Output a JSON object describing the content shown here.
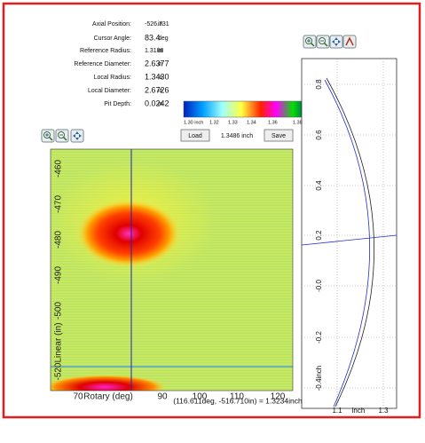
{
  "info": [
    {
      "label": "Axial Position:",
      "value": "-526.731",
      "unit": "in"
    },
    {
      "label": "Cursor Angle:",
      "value": "83.4",
      "unit": "deg"
    },
    {
      "label": "Reference Radius:",
      "value": "1.3188",
      "unit": "in"
    },
    {
      "label": "Reference Diameter:",
      "value": "2.6377",
      "unit": "in"
    },
    {
      "label": "Local Radius:",
      "value": "1.3430",
      "unit": "in"
    },
    {
      "label": "Local Diameter:",
      "value": "2.6726",
      "unit": "in"
    },
    {
      "label": "Pit Depth:",
      "value": "0.0242",
      "unit": "in"
    }
  ],
  "colorbar": {
    "labels": [
      "1.30 inch",
      "1.32",
      "1.33",
      "1.34",
      "1.36",
      "1.38"
    ]
  },
  "controls": {
    "load": "Load",
    "value": "1.3486 inch",
    "save": "Save"
  },
  "heatmap": {
    "yticks": [
      "-460",
      "-470",
      "-480",
      "-490",
      "-500",
      "-520Linear (in)"
    ],
    "xticks": [
      "70",
      "Rotary (deg)",
      "90",
      "100",
      "110",
      "120"
    ]
  },
  "profile": {
    "yticks": [
      "0.8",
      "0.6",
      "0.4",
      "0.2",
      "-0.0",
      "-0.2",
      "-0.4inch"
    ],
    "xticks": [
      "1.1",
      "inch",
      "1.3"
    ]
  },
  "status": "(116.611deg, -516.710in) = 1.3234inch"
}
